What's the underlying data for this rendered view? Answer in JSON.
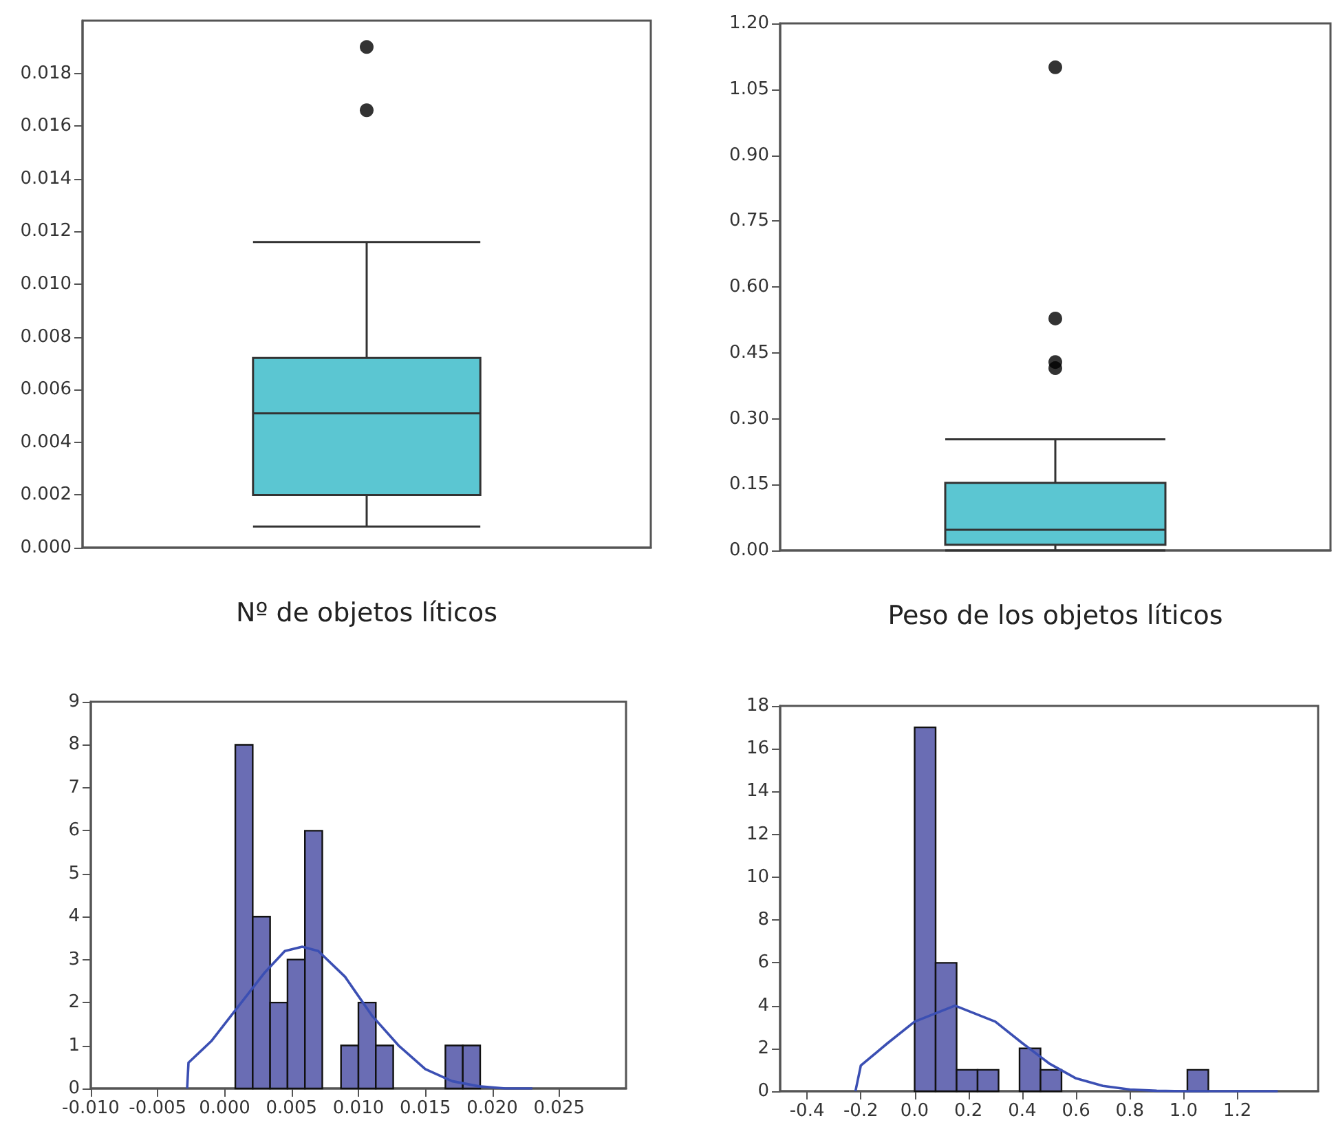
{
  "chart_data": [
    {
      "type": "box",
      "xlabel": "Nº de objetos líticos",
      "categories": [
        null
      ],
      "tick_labels": "y",
      "color": "#5bc6d2",
      "ylim": [
        0,
        0.02
      ],
      "yticks": [
        {
          "value": 0,
          "label": "0.000"
        },
        {
          "value": 0.002,
          "label": "0.002"
        },
        {
          "value": 0.004,
          "label": "0.004"
        },
        {
          "value": 0.006,
          "label": "0.006"
        },
        {
          "value": 0.008,
          "label": "0.008"
        },
        {
          "value": 0.01,
          "label": "0.010"
        },
        {
          "value": 0.012,
          "label": "0.012"
        },
        {
          "value": 0.014,
          "label": "0.014"
        },
        {
          "value": 0.016,
          "label": "0.016"
        },
        {
          "value": 0.018,
          "label": "0.018"
        }
      ],
      "boxes": [
        {
          "low": 0.0008,
          "q1": 0.002,
          "median": 0.0051,
          "q3": 0.0072,
          "high": 0.0116,
          "outliers": [
            0.0166,
            0.019
          ]
        }
      ]
    },
    {
      "type": "box",
      "xlabel": "Peso de los objetos líticos",
      "categories": [
        null
      ],
      "tick_labels": "y",
      "color": "#5bc6d2",
      "ylim": [
        0,
        1.2
      ],
      "yticks": [
        {
          "value": 0,
          "label": "0.00"
        },
        {
          "value": 0.15,
          "label": "0.15"
        },
        {
          "value": 0.3,
          "label": "0.30"
        },
        {
          "value": 0.45,
          "label": "0.45"
        },
        {
          "value": 0.6,
          "label": "0.60"
        },
        {
          "value": 0.75,
          "label": "0.75"
        },
        {
          "value": 0.9,
          "label": "0.90"
        },
        {
          "value": 1.05,
          "label": "1.05"
        },
        {
          "value": 1.2,
          "label": "1.20"
        }
      ],
      "boxes": [
        {
          "low": 0.0,
          "q1": 0.013,
          "median": 0.047,
          "q3": 0.154,
          "high": 0.253,
          "outliers": [
            0.415,
            0.429,
            0.528,
            1.1
          ]
        }
      ]
    },
    {
      "type": "histogram",
      "xlim": [
        -0.01,
        0.03
      ],
      "ylim": [
        0,
        9
      ],
      "xticks": [
        {
          "value": -0.01,
          "label": "-0.010"
        },
        {
          "value": -0.005,
          "label": "-0.005"
        },
        {
          "value": 0,
          "label": "0.000"
        },
        {
          "value": 0.005,
          "label": "0.005"
        },
        {
          "value": 0.01,
          "label": "0.010"
        },
        {
          "value": 0.015,
          "label": "0.015"
        },
        {
          "value": 0.02,
          "label": "0.020"
        },
        {
          "value": 0.025,
          "label": "0.025"
        }
      ],
      "yticks": [
        0,
        1,
        2,
        3,
        4,
        5,
        6,
        7,
        8,
        9
      ],
      "series": [
        {
          "type": "histogram",
          "color": "#6a6db4",
          "bins": [
            0.0008,
            0.0021,
            0.0034,
            0.0047,
            0.006,
            0.0073,
            0.0087,
            0.01,
            0.0113,
            0.0126,
            0.0165,
            0.0178,
            0.0191
          ],
          "values": [
            8,
            4,
            2,
            3,
            6,
            0,
            1,
            2,
            1,
            0,
            1,
            1
          ]
        },
        {
          "type": "line",
          "color": "#3b4fb3",
          "marker": "none",
          "x": [
            -0.0028,
            -0.0027,
            -0.001,
            0.001,
            0.003,
            0.0045,
            0.0058,
            0.007,
            0.009,
            0.011,
            0.013,
            0.015,
            0.017,
            0.019,
            0.021,
            0.023
          ],
          "values": [
            0,
            0.6,
            1.1,
            1.9,
            2.7,
            3.2,
            3.3,
            3.2,
            2.6,
            1.7,
            1.0,
            0.45,
            0.17,
            0.05,
            0,
            0
          ]
        }
      ]
    },
    {
      "type": "histogram",
      "xlim": [
        -0.5,
        1.5
      ],
      "ylim": [
        0,
        18
      ],
      "xticks": [
        {
          "value": -0.4,
          "label": "-0.4"
        },
        {
          "value": -0.2,
          "label": "-0.2"
        },
        {
          "value": 0,
          "label": "0.0"
        },
        {
          "value": 0.2,
          "label": "0.2"
        },
        {
          "value": 0.4,
          "label": "0.4"
        },
        {
          "value": 0.6,
          "label": "0.6"
        },
        {
          "value": 0.8,
          "label": "0.8"
        },
        {
          "value": 1,
          "label": "1.0"
        },
        {
          "value": 1.2,
          "label": "1.2"
        }
      ],
      "yticks": [
        0,
        2,
        4,
        6,
        8,
        10,
        12,
        14,
        16,
        18
      ],
      "series": [
        {
          "type": "histogram",
          "color": "#6a6db4",
          "bins": [
            0,
            0.078,
            0.156,
            0.234,
            0.312,
            0.39,
            0.468,
            0.546,
            1.014,
            1.092
          ],
          "values": [
            17,
            6,
            1,
            1,
            0,
            2,
            1,
            0,
            1
          ]
        },
        {
          "type": "line",
          "color": "#3b4fb3",
          "marker": "none",
          "x": [
            -0.22,
            -0.2,
            -0.1,
            0,
            0.15,
            0.3,
            0.4,
            0.5,
            0.6,
            0.7,
            0.8,
            0.9,
            1.0,
            1.35
          ],
          "values": [
            0,
            1.2,
            2.25,
            3.25,
            4.0,
            3.25,
            2.25,
            1.3,
            0.6,
            0.25,
            0.08,
            0.02,
            0,
            0
          ]
        }
      ]
    }
  ]
}
